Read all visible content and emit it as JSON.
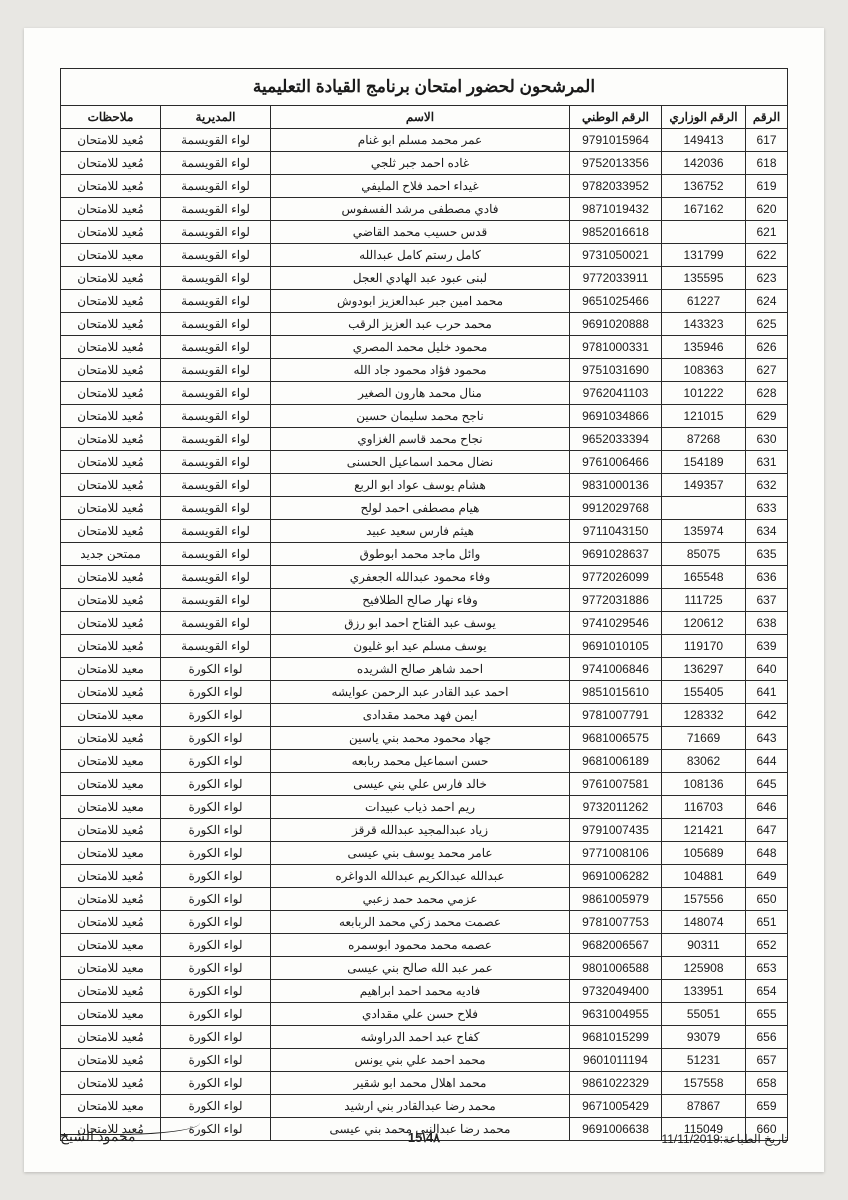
{
  "title": "المرشحون لحضور امتحان برنامج القيادة التعليمية",
  "columns": [
    "الرقم",
    "الرقم الوزاري",
    "الرقم الوطني",
    "الاسم",
    "المديرية",
    "ملاحظات"
  ],
  "rows": [
    [
      "617",
      "149413",
      "9791015964",
      "عمر محمد مسلم ابو غنام",
      "لواء القويسمة",
      "مُعيد للامتحان"
    ],
    [
      "618",
      "142036",
      "9752013356",
      "غاده احمد جبر ثلجي",
      "لواء القويسمة",
      "مُعيد للامتحان"
    ],
    [
      "619",
      "136752",
      "9782033952",
      "غيداء احمد فلاح المليفي",
      "لواء القويسمة",
      "مُعيد للامتحان"
    ],
    [
      "620",
      "167162",
      "9871019432",
      "فادي مصطفى مرشد الفسفوس",
      "لواء القويسمة",
      "مُعيد للامتحان"
    ],
    [
      "621",
      "",
      "9852016618",
      "قدس حسيب محمد القاضي",
      "لواء القويسمة",
      "مُعيد للامتحان"
    ],
    [
      "622",
      "131799",
      "9731050021",
      "كامل رستم كامل عبدالله",
      "لواء القويسمة",
      "معيد للامتحان"
    ],
    [
      "623",
      "135595",
      "9772033911",
      "لبنى عبود عبد الهادي العجل",
      "لواء القويسمة",
      "مُعيد للامتحان"
    ],
    [
      "624",
      "61227",
      "9651025466",
      "محمد امين جبر عبدالعزيز ابودوش",
      "لواء القويسمة",
      "مُعيد للامتحان"
    ],
    [
      "625",
      "143323",
      "9691020888",
      "محمد حرب عبد العزيز الرقب",
      "لواء القويسمة",
      "مُعيد للامتحان"
    ],
    [
      "626",
      "135946",
      "9781000331",
      "محمود خليل محمد المصري",
      "لواء القويسمة",
      "مُعيد للامتحان"
    ],
    [
      "627",
      "108363",
      "9751031690",
      "محمود فؤاد محمود جاد الله",
      "لواء القويسمة",
      "مُعيد للامتحان"
    ],
    [
      "628",
      "101222",
      "9762041103",
      "منال محمد هارون الصغير",
      "لواء القويسمة",
      "مُعيد للامتحان"
    ],
    [
      "629",
      "121015",
      "9691034866",
      "ناجح محمد سليمان حسين",
      "لواء القويسمة",
      "مُعيد للامتحان"
    ],
    [
      "630",
      "87268",
      "9652033394",
      "نجاح محمد قاسم الغزاوي",
      "لواء القويسمة",
      "مُعيد للامتحان"
    ],
    [
      "631",
      "154189",
      "9761006466",
      "نضال محمد اسماعيل الحسنى",
      "لواء القويسمة",
      "مُعيد للامتحان"
    ],
    [
      "632",
      "149357",
      "9831000136",
      "هشام يوسف عواد ابو الربع",
      "لواء القويسمة",
      "مُعيد للامتحان"
    ],
    [
      "633",
      "",
      "9912029768",
      "هيام مصطفى احمد لولح",
      "لواء القويسمة",
      "مُعيد للامتحان"
    ],
    [
      "634",
      "135974",
      "9711043150",
      "هيثم فارس سعيد عبيد",
      "لواء القويسمة",
      "مُعيد للامتحان"
    ],
    [
      "635",
      "85075",
      "9691028637",
      "وائل ماجد محمد ابوطوق",
      "لواء القويسمة",
      "ممتحن جديد"
    ],
    [
      "636",
      "165548",
      "9772026099",
      "وفاء محمود عبدالله الجعفري",
      "لواء القويسمة",
      "مُعيد للامتحان"
    ],
    [
      "637",
      "111725",
      "9772031886",
      "وفاء نهار صالح الطلافيح",
      "لواء القويسمة",
      "مُعيد للامتحان"
    ],
    [
      "638",
      "120612",
      "9741029546",
      "يوسف عبد الفتاح احمد ابو رزق",
      "لواء القويسمة",
      "مُعيد للامتحان"
    ],
    [
      "639",
      "119170",
      "9691010105",
      "يوسف مسلم عيد ابو غليون",
      "لواء القويسمة",
      "مُعيد للامتحان"
    ],
    [
      "640",
      "136297",
      "9741006846",
      "احمد شاهر صالح الشريده",
      "لواء الكورة",
      "معيد للامتحان"
    ],
    [
      "641",
      "155405",
      "9851015610",
      "احمد عبد القادر عبد الرحمن عوايشه",
      "لواء الكورة",
      "مُعيد للامتحان"
    ],
    [
      "642",
      "128332",
      "9781007791",
      "ايمن فهد محمد مقدادى",
      "لواء الكورة",
      "معيد للامتحان"
    ],
    [
      "643",
      "71669",
      "9681006575",
      "جهاد محمود محمد بني ياسين",
      "لواء الكورة",
      "مُعيد للامتحان"
    ],
    [
      "644",
      "83062",
      "9681006189",
      "حسن اسماعيل محمد ربابعه",
      "لواء الكورة",
      "معيد للامتحان"
    ],
    [
      "645",
      "108136",
      "9761007581",
      "خالد فارس علي بني عيسى",
      "لواء الكورة",
      "معيد للامتحان"
    ],
    [
      "646",
      "116703",
      "9732011262",
      "ريم احمد ذياب عبيدات",
      "لواء الكورة",
      "معيد للامتحان"
    ],
    [
      "647",
      "121421",
      "9791007435",
      "زياد عبدالمجيد عبدالله قرقز",
      "لواء الكورة",
      "مُعيد للامتحان"
    ],
    [
      "648",
      "105689",
      "9771008106",
      "عامر محمد يوسف بني عيسى",
      "لواء الكورة",
      "معيد للامتحان"
    ],
    [
      "649",
      "104881",
      "9691006282",
      "عبدالله عبدالكريم عبدالله الدواغره",
      "لواء الكورة",
      "مُعيد للامتحان"
    ],
    [
      "650",
      "157556",
      "9861005979",
      "عزمي محمد حمد زعبي",
      "لواء الكورة",
      "مُعيد للامتحان"
    ],
    [
      "651",
      "148074",
      "9781007753",
      "عصمت محمد زكي محمد الربابعه",
      "لواء الكورة",
      "مُعيد للامتحان"
    ],
    [
      "652",
      "90311",
      "9682006567",
      "عصمه محمد محمود ابوسمره",
      "لواء الكورة",
      "معيد للامتحان"
    ],
    [
      "653",
      "125908",
      "9801006588",
      "عمر عبد الله صالح بني عيسى",
      "لواء الكورة",
      "معيد للامتحان"
    ],
    [
      "654",
      "133951",
      "9732049400",
      "فاديه محمد احمد ابراهيم",
      "لواء الكورة",
      "مُعيد للامتحان"
    ],
    [
      "655",
      "55051",
      "9631004955",
      "فلاح حسن علي مقدادي",
      "لواء الكورة",
      "معيد للامتحان"
    ],
    [
      "656",
      "93079",
      "9681015299",
      "كفاح عبد احمد الدراوشه",
      "لواء الكورة",
      "مُعيد للامتحان"
    ],
    [
      "657",
      "51231",
      "9601011194",
      "محمد احمد علي بني يونس",
      "لواء الكورة",
      "مُعيد للامتحان"
    ],
    [
      "658",
      "157558",
      "9861022329",
      "محمد اهلال محمد ابو شقير",
      "لواء الكورة",
      "مُعيد للامتحان"
    ],
    [
      "659",
      "87867",
      "9671005429",
      "محمد رضا عبدالقادر بني ارشيد",
      "لواء الكورة",
      "معيد للامتحان"
    ],
    [
      "660",
      "115049",
      "9691006638",
      "محمد رضا عبدالنبي محمد بني عيسى",
      "لواء الكورة",
      "مُعيد للامتحان"
    ]
  ],
  "footer": {
    "print_date_label": "تاريخ الطباعة:11/11/2019",
    "page_num": "4٨\\15",
    "signature": "محمود الشيخ"
  },
  "style": {
    "page_bg": "#fdfdfb",
    "outer_bg": "#e8e7e3",
    "border_color": "#2a2a2a",
    "text_color": "#1a1a1a",
    "title_fontsize": 17,
    "cell_fontsize": 12
  }
}
